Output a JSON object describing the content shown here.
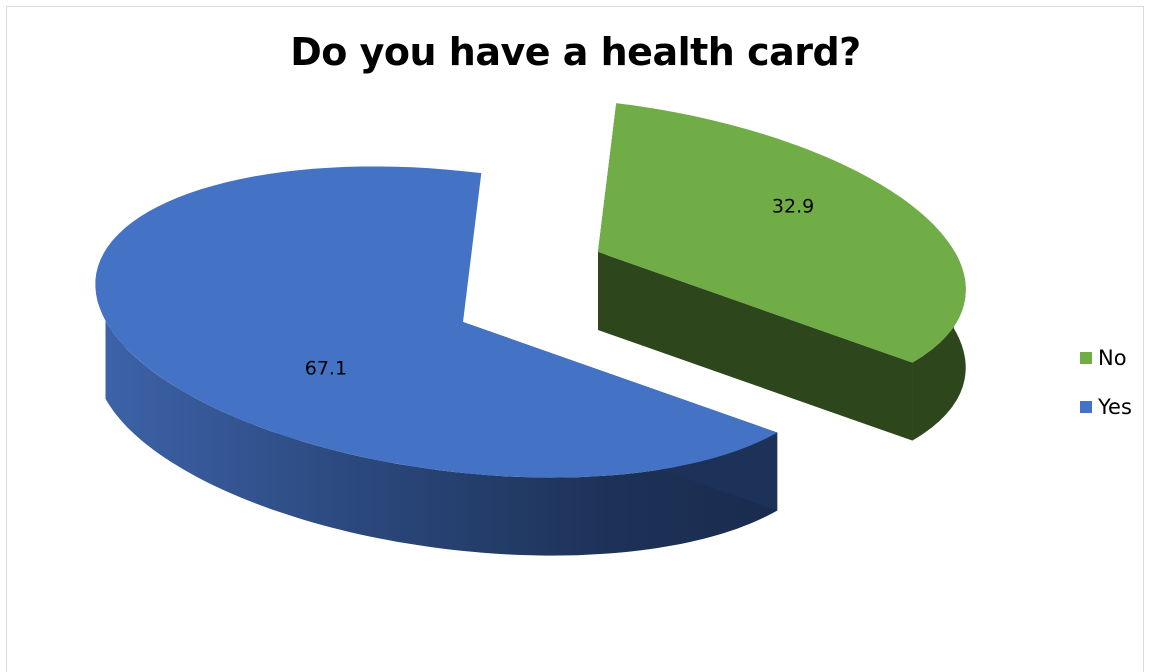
{
  "chart_data": {
    "type": "pie",
    "title": "Do you have a health card?",
    "three_d": true,
    "exploded": "No",
    "legend_position": "right",
    "slices": [
      {
        "name": "No",
        "value": 32.9,
        "label": "32.9",
        "color": "#70ad47",
        "side_color": "#2d461c"
      },
      {
        "name": "Yes",
        "value": 67.1,
        "label": "67.1",
        "color": "#4472c4",
        "side_color": "#1f3358"
      }
    ],
    "legend": [
      {
        "name": "No",
        "color": "#70ad47"
      },
      {
        "name": "Yes",
        "color": "#4472c4"
      }
    ]
  }
}
